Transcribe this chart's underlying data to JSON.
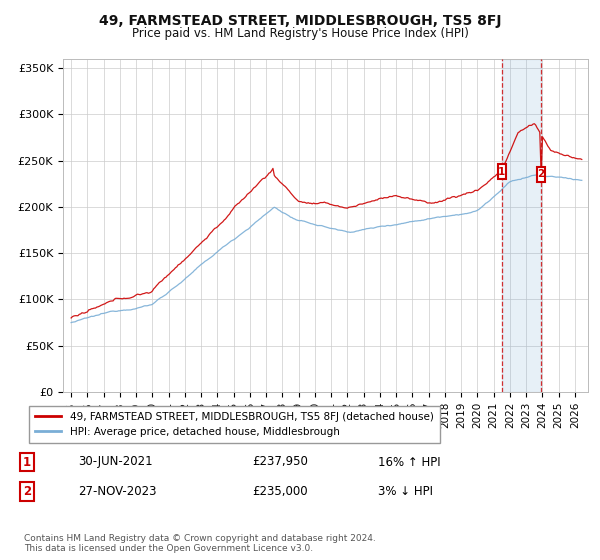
{
  "title": "49, FARMSTEAD STREET, MIDDLESBROUGH, TS5 8FJ",
  "subtitle": "Price paid vs. HM Land Registry's House Price Index (HPI)",
  "ylabel_ticks": [
    "£0",
    "£50K",
    "£100K",
    "£150K",
    "£200K",
    "£250K",
    "£300K",
    "£350K"
  ],
  "ytick_values": [
    0,
    50000,
    100000,
    150000,
    200000,
    250000,
    300000,
    350000
  ],
  "ylim": [
    0,
    360000
  ],
  "xlim_start": 1994.5,
  "xlim_end": 2026.8,
  "hpi_color": "#7aaed6",
  "price_color": "#cc0000",
  "marker1_date": 2021.49,
  "marker1_price": 237950,
  "marker1_label": "1",
  "marker1_date_str": "30-JUN-2021",
  "marker1_price_str": "£237,950",
  "marker1_hpi_str": "16% ↑ HPI",
  "marker2_date": 2023.9,
  "marker2_price": 235000,
  "marker2_label": "2",
  "marker2_date_str": "27-NOV-2023",
  "marker2_price_str": "£235,000",
  "marker2_hpi_str": "3% ↓ HPI",
  "legend_line1": "49, FARMSTEAD STREET, MIDDLESBROUGH, TS5 8FJ (detached house)",
  "legend_line2": "HPI: Average price, detached house, Middlesbrough",
  "footnote": "Contains HM Land Registry data © Crown copyright and database right 2024.\nThis data is licensed under the Open Government Licence v3.0.",
  "xtick_years": [
    1995,
    1996,
    1997,
    1998,
    1999,
    2000,
    2001,
    2002,
    2003,
    2004,
    2005,
    2006,
    2007,
    2008,
    2009,
    2010,
    2011,
    2012,
    2013,
    2014,
    2015,
    2016,
    2017,
    2018,
    2019,
    2020,
    2021,
    2022,
    2023,
    2024,
    2025,
    2026
  ],
  "background_color": "#ffffff",
  "grid_color": "#cccccc",
  "shade_color": "#ddeeff"
}
